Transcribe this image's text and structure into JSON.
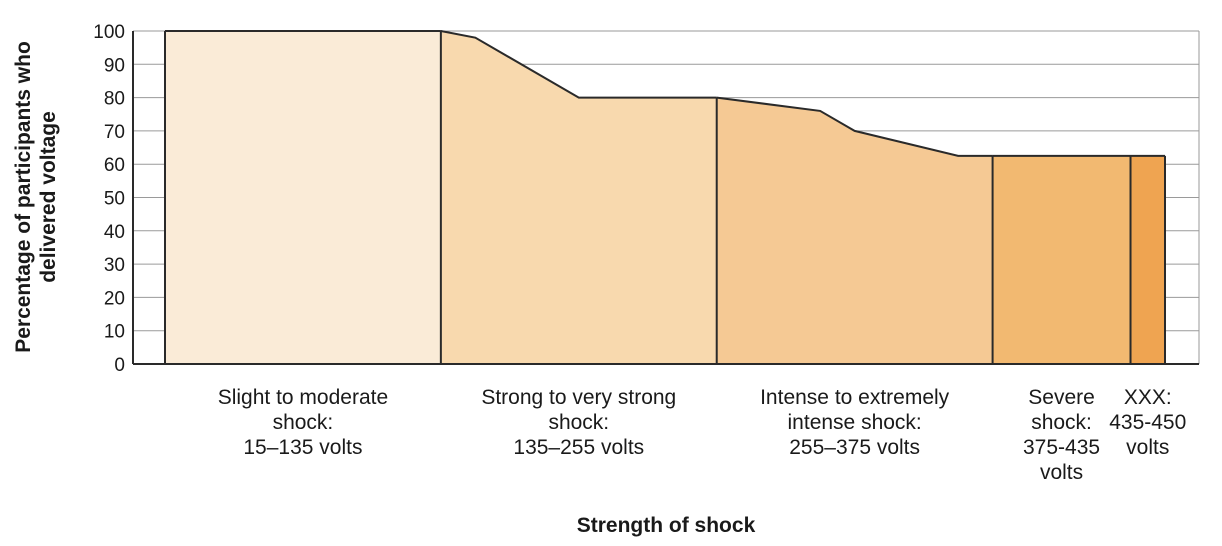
{
  "chart_data": {
    "type": "area",
    "title": "",
    "xlabel": "Strength of shock",
    "ylabel_lines": [
      "Percentage of participants who",
      "delivered voltage"
    ],
    "ylim": [
      0,
      100
    ],
    "y_ticks": [
      0,
      10,
      20,
      30,
      40,
      50,
      60,
      70,
      80,
      90,
      100
    ],
    "y_tick_labels": [
      "0",
      "10",
      "20",
      "30",
      "40",
      "50",
      "60",
      "70",
      "80",
      "90",
      "100"
    ],
    "grid": true,
    "xlim": [
      15,
      450
    ],
    "colors": [
      "#faebd7",
      "#f8d9ae",
      "#f5c994",
      "#f2b971",
      "#efa451"
    ],
    "categories": [
      {
        "label_lines": [
          "Slight to moderate",
          "shock:",
          "15–135 volts"
        ],
        "range": [
          15,
          135
        ]
      },
      {
        "label_lines": [
          "Strong to very strong",
          "shock:",
          "135–255 volts"
        ],
        "range": [
          135,
          255
        ]
      },
      {
        "label_lines": [
          "Intense to extremely",
          "intense shock:",
          "255–375 volts"
        ],
        "range": [
          255,
          375
        ]
      },
      {
        "label_lines": [
          "Severe",
          "shock:",
          "375-435",
          "volts"
        ],
        "range": [
          375,
          435
        ]
      },
      {
        "label_lines": [
          "XXX:",
          "435-450",
          "volts"
        ],
        "range": [
          435,
          450
        ]
      }
    ],
    "series": [
      {
        "x": [
          15,
          135,
          135,
          150,
          195,
          255,
          255,
          300,
          315,
          360,
          450
        ],
        "values": [
          100,
          100,
          100,
          98,
          80,
          80,
          80,
          76,
          70,
          62.5,
          62.5
        ]
      }
    ]
  }
}
